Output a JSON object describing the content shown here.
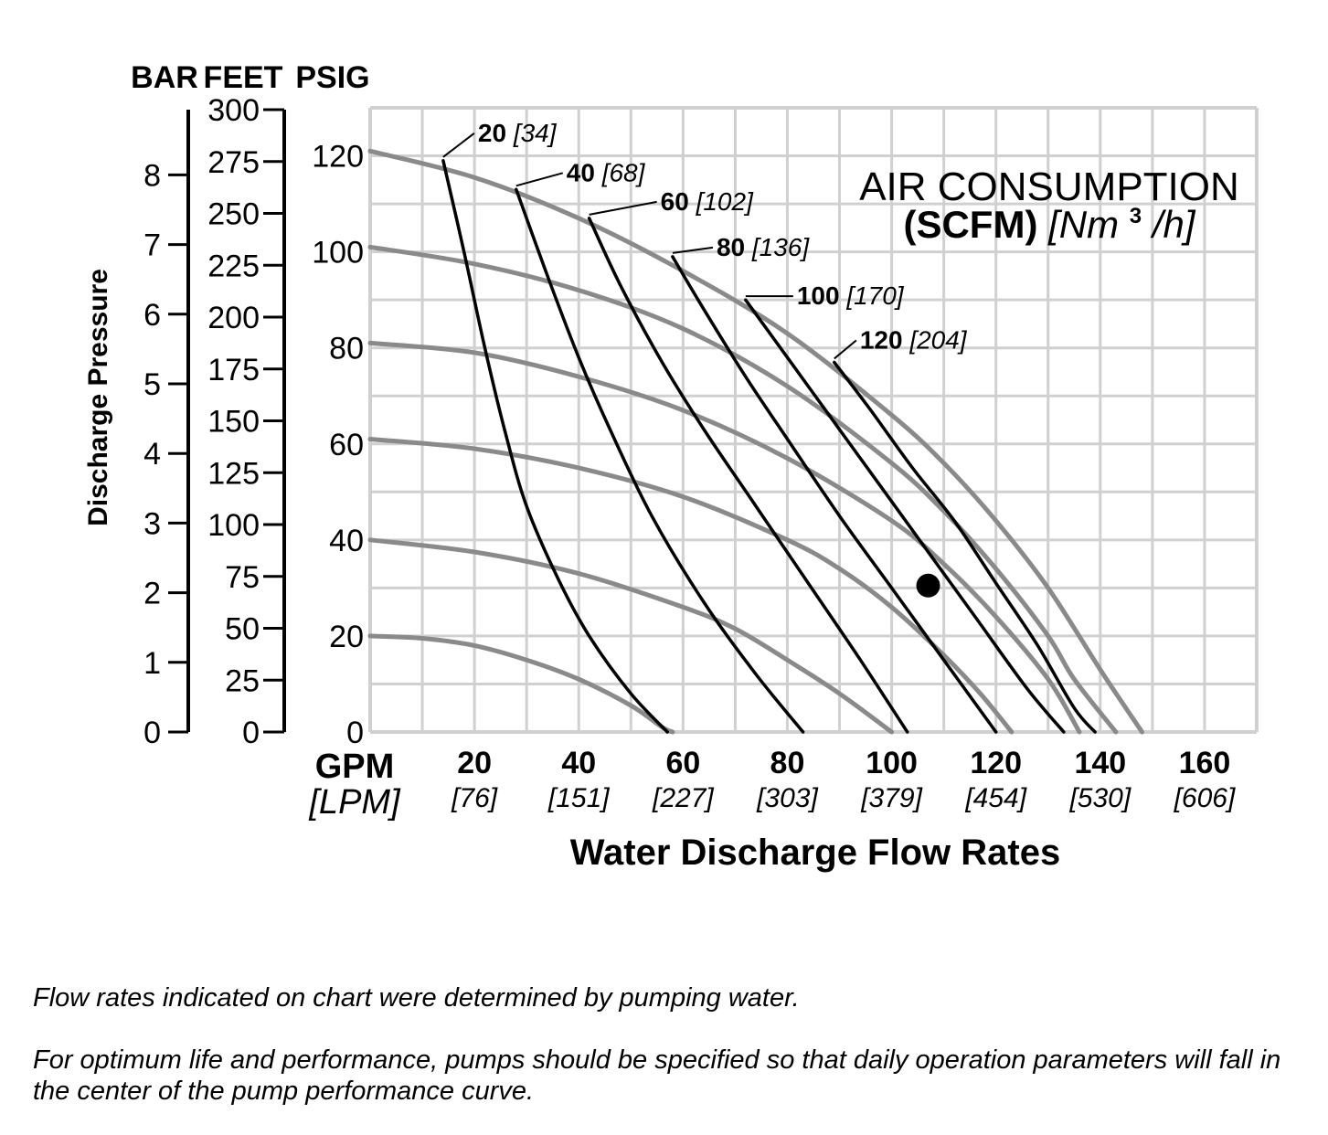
{
  "chart_data": {
    "type": "line",
    "axes_titles": {
      "bar": "BAR",
      "feet": "FEET",
      "psig": "PSIG",
      "pressure_label": "Discharge Pressure",
      "x_unit_main": "GPM",
      "x_unit_alt": "[LPM]",
      "xlabel": "Water Discharge Flow Rates"
    },
    "legend_title": {
      "line1": "AIR CONSUMPTION",
      "line2_bold": "(SCFM)",
      "line2_italic_prefix": "[Nm",
      "line2_sup": "3",
      "line2_italic_suffix": "/h]"
    },
    "x_ticks": [
      {
        "gpm": "20",
        "lpm": "[76]"
      },
      {
        "gpm": "40",
        "lpm": "[151]"
      },
      {
        "gpm": "60",
        "lpm": "[227]"
      },
      {
        "gpm": "80",
        "lpm": "[303]"
      },
      {
        "gpm": "100",
        "lpm": "[379]"
      },
      {
        "gpm": "120",
        "lpm": "[454]"
      },
      {
        "gpm": "140",
        "lpm": "[530]"
      },
      {
        "gpm": "160",
        "lpm": "[606]"
      }
    ],
    "xlim": [
      0,
      170
    ],
    "ylim": [
      0,
      130
    ],
    "psig_ticks": [
      "0",
      "20",
      "40",
      "60",
      "80",
      "100",
      "120"
    ],
    "feet_ticks": [
      "0",
      "25",
      "50",
      "75",
      "100",
      "125",
      "150",
      "175",
      "200",
      "225",
      "250",
      "275",
      "300"
    ],
    "bar_ticks": [
      "0",
      "1",
      "2",
      "3",
      "4",
      "5",
      "6",
      "7",
      "8"
    ],
    "grid": true,
    "pressure_curves": [
      {
        "inlet_psig": 120,
        "points": [
          [
            0,
            121
          ],
          [
            20,
            115.5
          ],
          [
            40,
            107
          ],
          [
            60,
            96
          ],
          [
            80,
            83
          ],
          [
            100,
            66
          ],
          [
            110,
            56
          ],
          [
            120,
            44
          ],
          [
            130,
            30
          ],
          [
            140,
            13
          ],
          [
            148,
            0
          ]
        ]
      },
      {
        "inlet_psig": 100,
        "points": [
          [
            0,
            101
          ],
          [
            20,
            97.5
          ],
          [
            40,
            92
          ],
          [
            60,
            84
          ],
          [
            80,
            72
          ],
          [
            100,
            56
          ],
          [
            110,
            46
          ],
          [
            120,
            34
          ],
          [
            130,
            20
          ],
          [
            135,
            11
          ],
          [
            143,
            0
          ]
        ]
      },
      {
        "inlet_psig": 80,
        "points": [
          [
            0,
            81
          ],
          [
            20,
            79
          ],
          [
            40,
            74
          ],
          [
            60,
            67
          ],
          [
            80,
            57
          ],
          [
            100,
            44
          ],
          [
            110,
            35
          ],
          [
            120,
            24
          ],
          [
            130,
            11
          ],
          [
            136,
            0
          ]
        ]
      },
      {
        "inlet_psig": 60,
        "points": [
          [
            0,
            61
          ],
          [
            20,
            59
          ],
          [
            40,
            55
          ],
          [
            60,
            49
          ],
          [
            80,
            40
          ],
          [
            90,
            34
          ],
          [
            100,
            26
          ],
          [
            110,
            16
          ],
          [
            117,
            8
          ],
          [
            123,
            0
          ]
        ]
      },
      {
        "inlet_psig": 40,
        "points": [
          [
            0,
            40
          ],
          [
            20,
            37.5
          ],
          [
            40,
            33
          ],
          [
            60,
            26
          ],
          [
            70,
            21.5
          ],
          [
            80,
            15
          ],
          [
            90,
            8
          ],
          [
            100,
            0
          ]
        ]
      },
      {
        "inlet_psig": 20,
        "points": [
          [
            0,
            20
          ],
          [
            10,
            19.5
          ],
          [
            20,
            18
          ],
          [
            30,
            15
          ],
          [
            40,
            11
          ],
          [
            50,
            5.5
          ],
          [
            56,
            1
          ],
          [
            58,
            0
          ]
        ]
      }
    ],
    "air_consumption_curves": [
      {
        "scfm": "20",
        "nm3h": "[34]",
        "points": [
          [
            14,
            119
          ],
          [
            18,
            100
          ],
          [
            22,
            80
          ],
          [
            26,
            62
          ],
          [
            30,
            47
          ],
          [
            36,
            32
          ],
          [
            42,
            20
          ],
          [
            50,
            8
          ],
          [
            57,
            0
          ]
        ]
      },
      {
        "scfm": "40",
        "nm3h": "[68]",
        "points": [
          [
            28,
            113
          ],
          [
            34,
            95
          ],
          [
            40,
            78
          ],
          [
            46,
            63
          ],
          [
            54,
            45
          ],
          [
            64,
            27
          ],
          [
            74,
            12
          ],
          [
            83,
            0
          ]
        ]
      },
      {
        "scfm": "60",
        "nm3h": "[102]",
        "points": [
          [
            42,
            107
          ],
          [
            48,
            93
          ],
          [
            56,
            77
          ],
          [
            64,
            63
          ],
          [
            74,
            47
          ],
          [
            84,
            31
          ],
          [
            94,
            15
          ],
          [
            103,
            0
          ]
        ]
      },
      {
        "scfm": "80",
        "nm3h": "[136]",
        "points": [
          [
            58,
            99
          ],
          [
            64,
            88
          ],
          [
            72,
            74
          ],
          [
            80,
            61
          ],
          [
            90,
            45
          ],
          [
            100,
            30
          ],
          [
            110,
            15
          ],
          [
            120,
            0
          ]
        ]
      },
      {
        "scfm": "100",
        "nm3h": "[170]",
        "points": [
          [
            72,
            90
          ],
          [
            80,
            78
          ],
          [
            88,
            66
          ],
          [
            96,
            54
          ],
          [
            106,
            39
          ],
          [
            116,
            24
          ],
          [
            126,
            9
          ],
          [
            133,
            0
          ]
        ]
      },
      {
        "scfm": "120",
        "nm3h": "[204]",
        "points": [
          [
            89,
            77
          ],
          [
            96,
            67
          ],
          [
            104,
            55
          ],
          [
            112,
            44
          ],
          [
            120,
            31
          ],
          [
            128,
            18
          ],
          [
            135,
            5
          ],
          [
            139,
            0
          ]
        ]
      }
    ],
    "marker_point": [
      107,
      30.5
    ]
  },
  "notes": {
    "note1": "Flow rates indicated on chart were determined by pumping water.",
    "note2": "For optimum life and performance, pumps should be specified so that daily operation parameters will fall in the center of the pump performance curve."
  }
}
